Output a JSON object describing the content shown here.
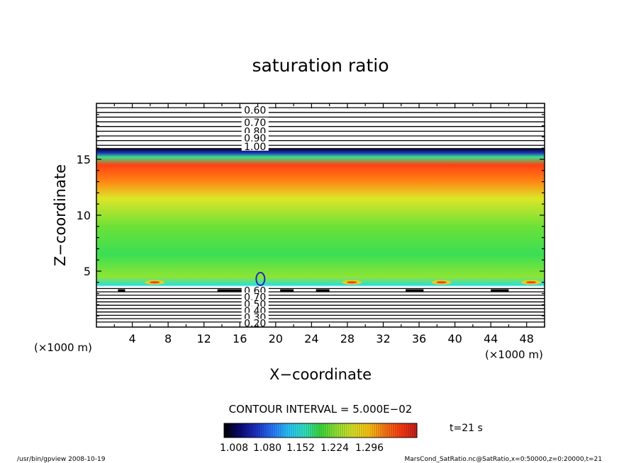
{
  "chart_data": {
    "type": "heatmap",
    "title": "saturation ratio",
    "xlabel": "X−coordinate",
    "ylabel": "Z−coordinate",
    "x_unit_left": "(×1000 m)",
    "x_unit_right": "(×1000 m)",
    "xlim": [
      0,
      50
    ],
    "ylim": [
      0,
      20
    ],
    "x_ticks": [
      4,
      8,
      12,
      16,
      20,
      24,
      28,
      32,
      36,
      40,
      44,
      48
    ],
    "y_ticks": [
      5,
      10,
      15
    ],
    "contour_interval_text": "CONTOUR INTERVAL = 5.000E−02",
    "colorbar": {
      "min": 1.0,
      "max": 1.33,
      "tick_labels": [
        "1.008",
        "1.080",
        "1.152",
        "1.224",
        "1.296"
      ],
      "colors": [
        "#000000",
        "#0a0a78",
        "#1e32c8",
        "#2878ff",
        "#28c8ff",
        "#32e6c8",
        "#3cdc3c",
        "#96e632",
        "#dce628",
        "#ffc814",
        "#ff7814",
        "#ff3c14",
        "#c81e1e"
      ]
    },
    "field": {
      "description_levels": [
        {
          "z": 0.0,
          "value": 0.2
        },
        {
          "z": 3.6,
          "value": 0.95
        },
        {
          "z": 3.75,
          "value": 1.13
        },
        {
          "z": 4.5,
          "value": 1.19
        },
        {
          "z": 6.5,
          "value": 1.16
        },
        {
          "z": 9.0,
          "value": 1.18
        },
        {
          "z": 11.5,
          "value": 1.22
        },
        {
          "z": 13.0,
          "value": 1.27
        },
        {
          "z": 14.5,
          "value": 1.3
        },
        {
          "z": 15.2,
          "value": 1.15
        },
        {
          "z": 15.6,
          "value": 1.05
        },
        {
          "z": 16.0,
          "value": 1.0
        },
        {
          "z": 20.0,
          "value": 0.6
        }
      ],
      "hot_spots_x": [
        6.5,
        28.5,
        38.5,
        48.5
      ],
      "hot_spot_z": 4.0
    },
    "contour_labels_top": [
      "0.60",
      "0.70",
      "0.80",
      "0.90",
      "1.00"
    ],
    "contour_labels_bottom": [
      "0.60",
      "0.70",
      "0.50",
      "0.40",
      "0.30",
      "0.20"
    ],
    "time_label": "t=21 s"
  },
  "footer": {
    "left": "/usr/bin/gpview   2008-10-19",
    "right": "MarsCond_SatRatio.nc@SatRatio,x=0:50000,z=0:20000,t=21"
  }
}
